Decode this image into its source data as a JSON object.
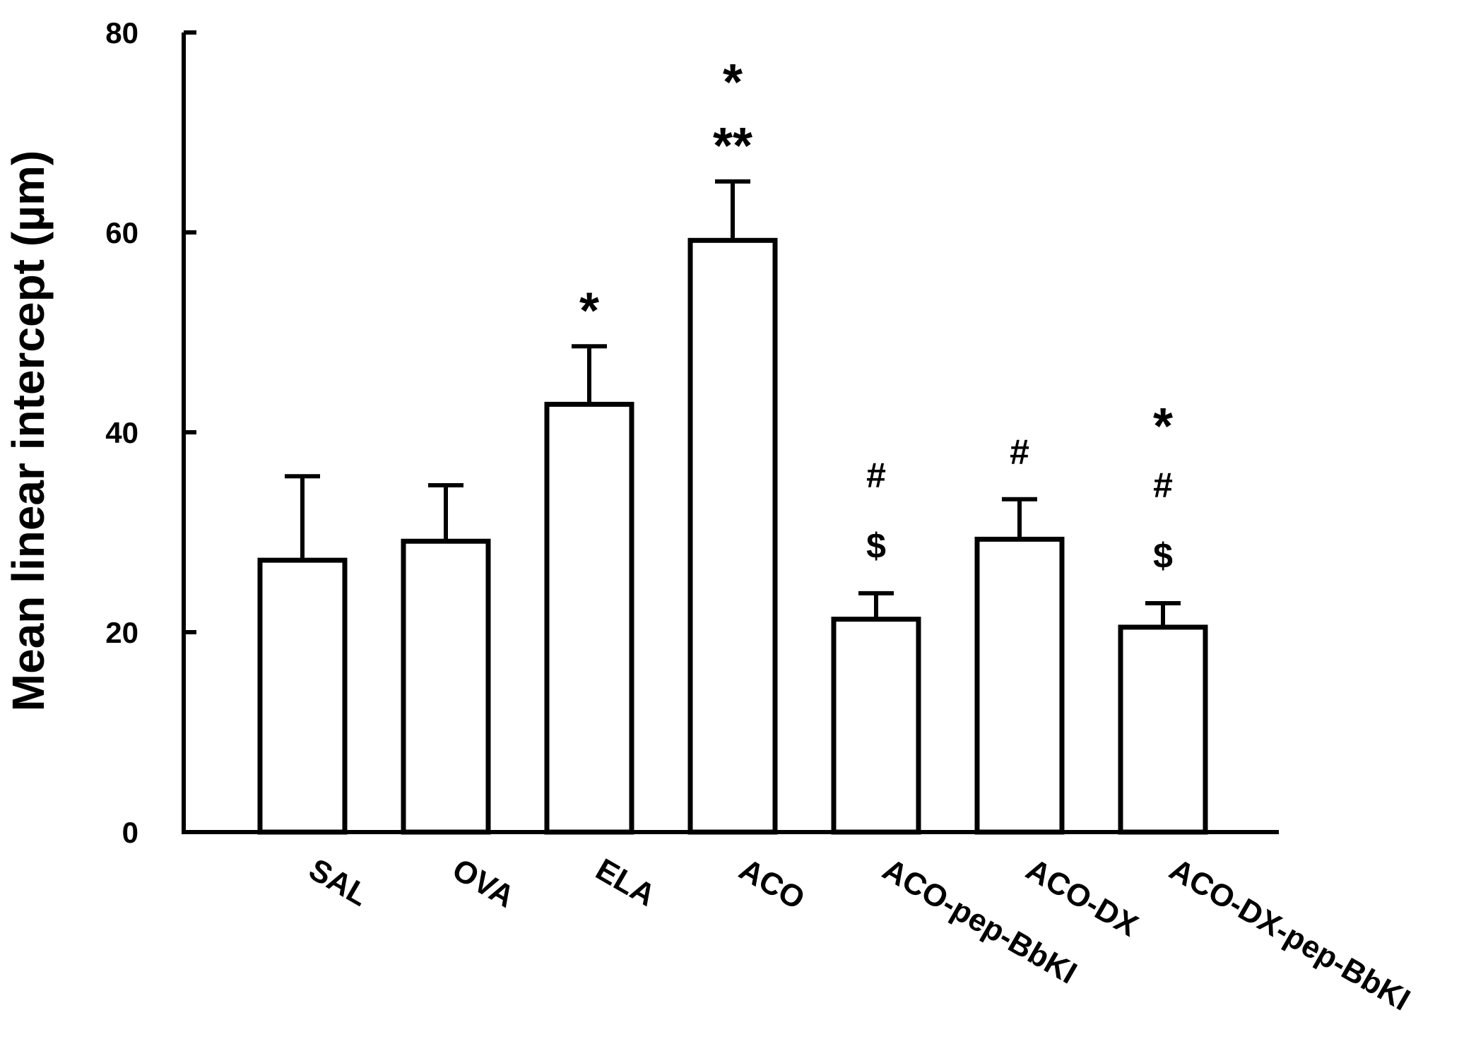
{
  "chart_data": {
    "type": "bar",
    "title": "",
    "xlabel": "",
    "ylabel": "Mean linear intercept (µm)",
    "ylim": [
      0,
      80
    ],
    "yticks": [
      0,
      20,
      40,
      60,
      80
    ],
    "grid": false,
    "legend": "none",
    "bar_fill": "#ffffff",
    "bar_stroke": "#000000",
    "categories": [
      "SAL",
      "OVA",
      "ELA",
      "ACO",
      "ACO-pep-BbKI",
      "ACO-DX",
      "ACO-DX-pep-BbKI"
    ],
    "values": [
      27.2,
      29.1,
      42.8,
      59.2,
      21.3,
      29.3,
      20.5
    ],
    "errors": [
      8.4,
      5.6,
      5.8,
      5.9,
      2.6,
      4.0,
      2.4
    ],
    "annotations": [
      [],
      [],
      [
        "*"
      ],
      [
        "**",
        "*"
      ],
      [
        "$",
        "#"
      ],
      [
        "#"
      ],
      [
        "$",
        "#",
        "*"
      ]
    ]
  }
}
